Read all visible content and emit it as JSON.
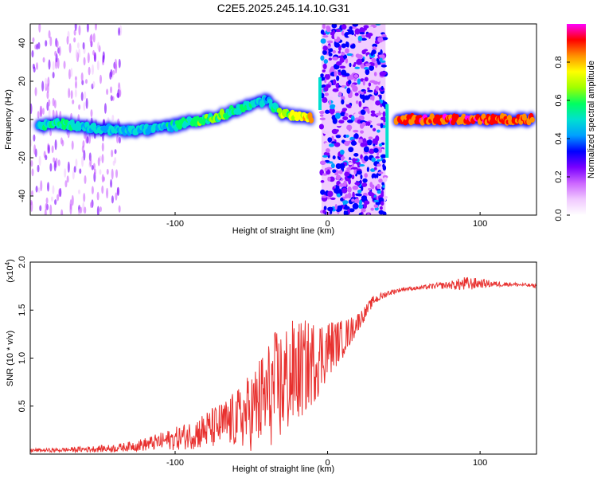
{
  "chart_data": [
    {
      "type": "heatmap",
      "title": "C2E5.2025.245.14.10.G31",
      "xlabel": "Height of straight line (km)",
      "ylabel": "Frequency (Hz)",
      "xlim": [
        -195,
        137
      ],
      "ylim": [
        -50,
        50
      ],
      "xticks": [
        -100,
        0,
        100
      ],
      "yticks": [
        -40,
        -20,
        0,
        20,
        40
      ],
      "colorbar": {
        "label": "Normalized spectral amplitude",
        "range": [
          0,
          1
        ],
        "ticks": [
          "0.0",
          "0.2",
          "0.4",
          "0.6",
          "0.8"
        ],
        "colors": [
          "#ffffff",
          "#f0c8ff",
          "#cc66ff",
          "#7a00ff",
          "#0000ff",
          "#00a0ff",
          "#00e0d0",
          "#00ff60",
          "#a0ff00",
          "#ffff00",
          "#ff9000",
          "#ff0000",
          "#ff00ff"
        ]
      },
      "ridge": [
        {
          "x": -190,
          "f": -3,
          "amp": 0.5
        },
        {
          "x": -175,
          "f": -2,
          "amp": 0.55
        },
        {
          "x": -160,
          "f": -4,
          "amp": 0.5
        },
        {
          "x": -145,
          "f": -5,
          "amp": 0.45
        },
        {
          "x": -130,
          "f": -6,
          "amp": 0.45
        },
        {
          "x": -115,
          "f": -5,
          "amp": 0.45
        },
        {
          "x": -100,
          "f": -3,
          "amp": 0.5
        },
        {
          "x": -90,
          "f": -1,
          "amp": 0.55
        },
        {
          "x": -80,
          "f": 0,
          "amp": 0.6
        },
        {
          "x": -70,
          "f": 2,
          "amp": 0.6
        },
        {
          "x": -60,
          "f": 5,
          "amp": 0.55
        },
        {
          "x": -50,
          "f": 8,
          "amp": 0.5
        },
        {
          "x": -40,
          "f": 10,
          "amp": 0.4
        },
        {
          "x": -30,
          "f": 3,
          "amp": 0.65
        },
        {
          "x": -20,
          "f": 2,
          "amp": 0.7
        },
        {
          "x": -10,
          "f": 1,
          "amp": 0.75
        },
        {
          "x": 45,
          "f": 0,
          "amp": 0.85
        },
        {
          "x": 60,
          "f": 0,
          "amp": 0.9
        },
        {
          "x": 80,
          "f": 0,
          "amp": 0.9
        },
        {
          "x": 100,
          "f": 0,
          "amp": 0.9
        },
        {
          "x": 120,
          "f": 0,
          "amp": 0.88
        },
        {
          "x": 135,
          "f": 0,
          "amp": 0.85
        }
      ],
      "noise_band": {
        "x_from": -4,
        "x_to": 38,
        "f_from": -50,
        "f_to": 50,
        "amp": 0.25
      }
    },
    {
      "type": "line",
      "title": "",
      "xlabel": "Height of straight line (km)",
      "ylabel": "SNR (10 * v/v)",
      "yscale_label": "(x10",
      "yscale_exp": "4",
      "yscale_close": ")",
      "xlim": [
        -195,
        137
      ],
      "ylim": [
        0,
        2.0
      ],
      "xticks": [
        -100,
        0,
        100
      ],
      "yticks": [
        "0.5",
        "1.0",
        "1.5",
        "2.0"
      ],
      "series": [
        {
          "name": "SNR",
          "color": "#e8312f",
          "x": [
            -195,
            -180,
            -160,
            -140,
            -130,
            -120,
            -110,
            -100,
            -90,
            -80,
            -70,
            -60,
            -50,
            -45,
            -40,
            -35,
            -30,
            -25,
            -20,
            -15,
            -10,
            -5,
            0,
            5,
            10,
            15,
            20,
            25,
            30,
            40,
            50,
            60,
            70,
            80,
            90,
            100,
            110,
            120,
            130,
            137
          ],
          "values": [
            0.04,
            0.04,
            0.05,
            0.06,
            0.08,
            0.1,
            0.13,
            0.16,
            0.2,
            0.25,
            0.3,
            0.36,
            0.45,
            0.52,
            0.6,
            0.68,
            0.72,
            0.8,
            0.85,
            0.9,
            0.95,
            1.02,
            1.1,
            1.15,
            1.2,
            1.28,
            1.38,
            1.48,
            1.6,
            1.68,
            1.72,
            1.73,
            1.75,
            1.76,
            1.77,
            1.78,
            1.77,
            1.77,
            1.76,
            1.75
          ],
          "noise": [
            0.02,
            0.02,
            0.03,
            0.04,
            0.05,
            0.07,
            0.09,
            0.12,
            0.15,
            0.2,
            0.24,
            0.3,
            0.42,
            0.5,
            0.55,
            0.6,
            0.62,
            0.6,
            0.55,
            0.5,
            0.45,
            0.4,
            0.32,
            0.25,
            0.2,
            0.15,
            0.1,
            0.07,
            0.05,
            0.03,
            0.02,
            0.02,
            0.03,
            0.04,
            0.08,
            0.05,
            0.03,
            0.02,
            0.02,
            0.02
          ]
        }
      ]
    }
  ]
}
